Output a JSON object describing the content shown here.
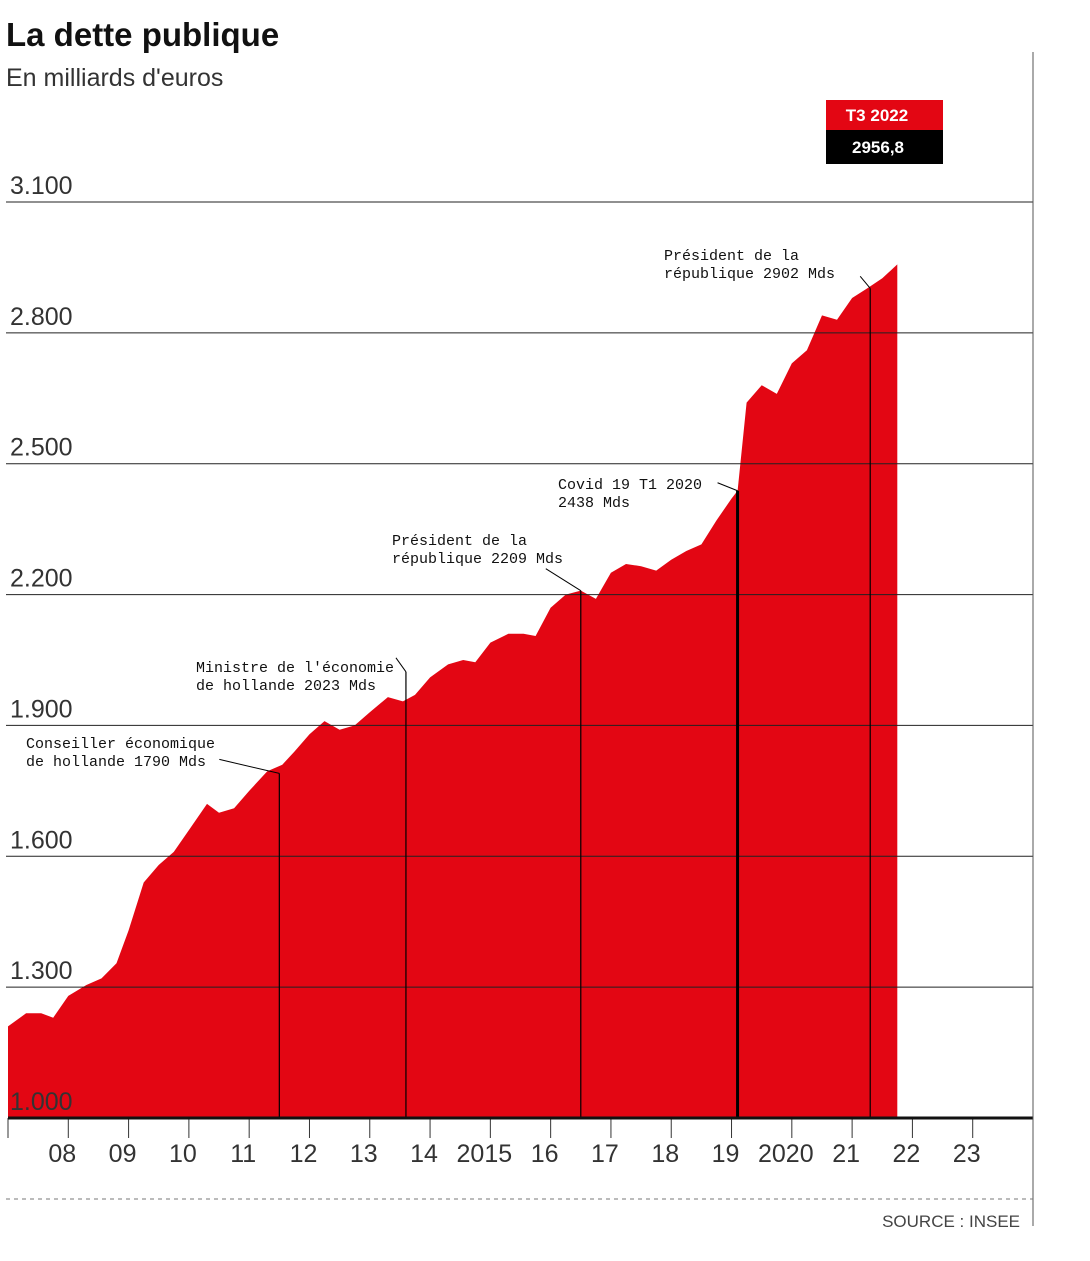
{
  "chart_data": {
    "type": "area",
    "title": "La dette publique",
    "subtitle": "En milliards d'euros",
    "source": "SOURCE : INSEE",
    "colors": {
      "area": "#e30613",
      "badge_top": "#e30613",
      "badge_bottom": "#000000",
      "grid": "#222222"
    },
    "ylim": [
      1000,
      3100
    ],
    "yticks": [
      {
        "value": 1000,
        "label": "1.000"
      },
      {
        "value": 1300,
        "label": "1.300"
      },
      {
        "value": 1600,
        "label": "1.600"
      },
      {
        "value": 1900,
        "label": "1.900"
      },
      {
        "value": 2200,
        "label": "2.200"
      },
      {
        "value": 2500,
        "label": "2.500"
      },
      {
        "value": 2800,
        "label": "2.800"
      },
      {
        "value": 3100,
        "label": "3.100"
      }
    ],
    "xlim": [
      2007.0,
      2024.0
    ],
    "xticks": [
      {
        "value": 2008,
        "label": "08"
      },
      {
        "value": 2009,
        "label": "09"
      },
      {
        "value": 2010,
        "label": "10"
      },
      {
        "value": 2011,
        "label": "11"
      },
      {
        "value": 2012,
        "label": "12"
      },
      {
        "value": 2013,
        "label": "13"
      },
      {
        "value": 2014,
        "label": "14"
      },
      {
        "value": 2015,
        "label": "2015"
      },
      {
        "value": 2016,
        "label": "16"
      },
      {
        "value": 2017,
        "label": "17"
      },
      {
        "value": 2018,
        "label": "18"
      },
      {
        "value": 2019,
        "label": "19"
      },
      {
        "value": 2020,
        "label": "2020"
      },
      {
        "value": 2021,
        "label": "21"
      },
      {
        "value": 2022,
        "label": "22"
      },
      {
        "value": 2023,
        "label": "23"
      }
    ],
    "series": [
      {
        "x": [
          2007.0,
          2007.3,
          2007.55,
          2007.75,
          2008.0,
          2008.3,
          2008.55,
          2008.8,
          2009.0,
          2009.25,
          2009.5,
          2009.75,
          2010.0,
          2010.3,
          2010.5,
          2010.75,
          2011.0,
          2011.3,
          2011.55,
          2011.75,
          2012.0,
          2012.25,
          2012.5,
          2012.75,
          2013.0,
          2013.3,
          2013.55,
          2013.75,
          2014.0,
          2014.3,
          2014.55,
          2014.75,
          2015.0,
          2015.3,
          2015.55,
          2015.75,
          2016.0,
          2016.25,
          2016.5,
          2016.75,
          2017.0,
          2017.25,
          2017.5,
          2017.75,
          2018.0,
          2018.25,
          2018.5,
          2018.75,
          2019.0,
          2019.1,
          2019.25,
          2019.5,
          2019.75,
          2020.0,
          2020.25,
          2020.5,
          2020.75,
          2021.0,
          2021.25,
          2021.5,
          2021.75
        ],
        "y": [
          1210,
          1240,
          1240,
          1230,
          1280,
          1305,
          1320,
          1355,
          1430,
          1540,
          1580,
          1610,
          1660,
          1720,
          1700,
          1710,
          1750,
          1795,
          1810,
          1840,
          1880,
          1910,
          1890,
          1900,
          1930,
          1965,
          1955,
          1970,
          2010,
          2040,
          2050,
          2045,
          2090,
          2110,
          2110,
          2105,
          2170,
          2200,
          2209,
          2190,
          2250,
          2270,
          2265,
          2255,
          2280,
          2300,
          2315,
          2370,
          2420,
          2438,
          2640,
          2680,
          2660,
          2730,
          2760,
          2840,
          2830,
          2880,
          2902,
          2925,
          2957
        ]
      }
    ],
    "badge": {
      "period": "T3 2022",
      "value": "2956,8"
    },
    "annotations": [
      {
        "x": 2011.5,
        "y": 1790,
        "lines": [
          "Conseiller économique",
          "de hollande 1790 Mds"
        ]
      },
      {
        "x": 2013.6,
        "y": 2023,
        "lines": [
          "Ministre de l'économie",
          "de hollande 2023 Mds"
        ]
      },
      {
        "x": 2016.5,
        "y": 2209,
        "lines": [
          "Président de la",
          "république 2209 Mds"
        ]
      },
      {
        "x": 2019.1,
        "y": 2438,
        "lines": [
          "Covid 19 T1 2020",
          "2438 Mds"
        ]
      },
      {
        "x": 2021.3,
        "y": 2902,
        "lines": [
          "Président de la",
          "république 2902 Mds"
        ]
      }
    ]
  }
}
